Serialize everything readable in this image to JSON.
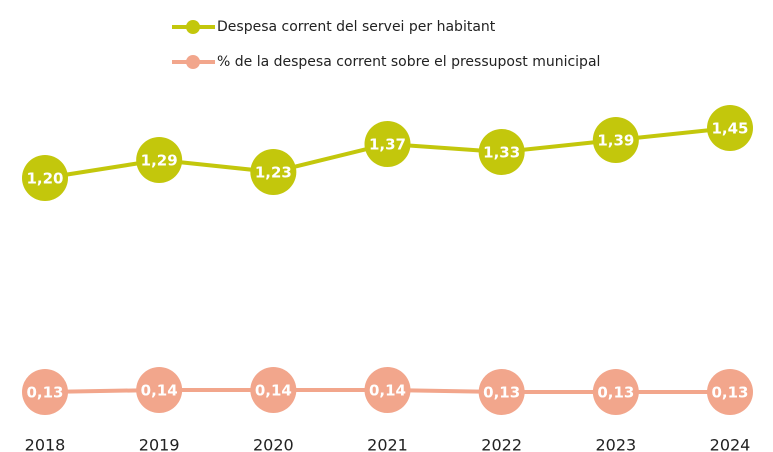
{
  "chart_data": {
    "type": "line",
    "categories": [
      "2018",
      "2019",
      "2020",
      "2021",
      "2022",
      "2023",
      "2024"
    ],
    "series": [
      {
        "name": "Despesa corrent del servei per habitant",
        "color": "#c3c70c",
        "values": [
          1.2,
          1.29,
          1.23,
          1.37,
          1.33,
          1.39,
          1.45
        ],
        "value_labels": [
          "1,20",
          "1,29",
          "1,23",
          "1,37",
          "1,33",
          "1,39",
          "1,45"
        ]
      },
      {
        "name": "% de la despesa corrent sobre el pressupost municipal",
        "color": "#f2a68c",
        "values": [
          0.13,
          0.14,
          0.14,
          0.14,
          0.13,
          0.13,
          0.13
        ],
        "value_labels": [
          "0,13",
          "0,14",
          "0,14",
          "0,14",
          "0,13",
          "0,13",
          "0,13"
        ]
      }
    ],
    "ylim": [
      0,
      2
    ]
  }
}
